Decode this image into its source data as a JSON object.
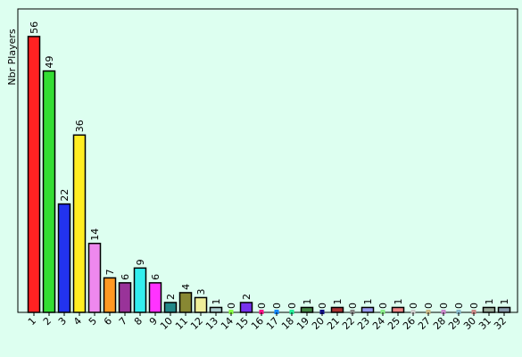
{
  "chart_data": {
    "type": "bar",
    "y_label": "Nbr Players",
    "categories": [
      "1",
      "2",
      "3",
      "4",
      "5",
      "6",
      "7",
      "8",
      "9",
      "10",
      "11",
      "12",
      "13",
      "14",
      "15",
      "16",
      "17",
      "18",
      "19",
      "20",
      "21",
      "22",
      "23",
      "24",
      "25",
      "26",
      "27",
      "28",
      "29",
      "30",
      "31",
      "32"
    ],
    "values": [
      56,
      49,
      22,
      36,
      14,
      7,
      6,
      9,
      6,
      2,
      4,
      3,
      1,
      0,
      2,
      0,
      0,
      0,
      1,
      0,
      1,
      0,
      1,
      0,
      1,
      0,
      0,
      0,
      0,
      0,
      1,
      1
    ],
    "colors": [
      "#ff2222",
      "#33dd33",
      "#2233ee",
      "#ffee22",
      "#ee88ee",
      "#ff9922",
      "#993399",
      "#33eeee",
      "#ff33ff",
      "#228888",
      "#888833",
      "#eeee99",
      "#aacccc",
      "#88ff44",
      "#7733ee",
      "#ff1188",
      "#1188ff",
      "#22ee99",
      "#448844",
      "#111188",
      "#aa3333",
      "#888888",
      "#9999ee",
      "#88ee88",
      "#ee8888",
      "#cccccc",
      "#ccbb88",
      "#cc88cc",
      "#88bbcc",
      "#cc8888",
      "#99aa99",
      "#8899aa"
    ]
  }
}
